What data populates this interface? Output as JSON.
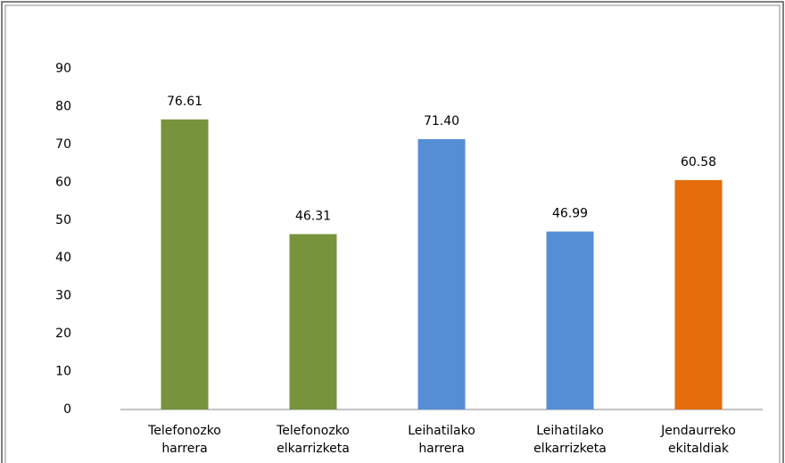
{
  "chart_data": {
    "type": "bar",
    "categories": [
      "Telefonozko harrera",
      "Telefonozko elkarrizketa",
      "Leihatilako harrera",
      "Leihatilako elkarrizketa",
      "Jendaurreko ekitaldiak"
    ],
    "values": [
      76.61,
      46.31,
      71.4,
      46.99,
      60.58
    ],
    "value_labels": [
      "76.61",
      "46.31",
      "71.40",
      "46.99",
      "60.58"
    ],
    "colors": [
      "#77933c",
      "#77933c",
      "#558ed5",
      "#558ed5",
      "#e46c0a"
    ],
    "ylim": [
      0,
      90
    ],
    "yticks": [
      0,
      10,
      20,
      30,
      40,
      50,
      60,
      70,
      80,
      90
    ],
    "grid": false
  }
}
